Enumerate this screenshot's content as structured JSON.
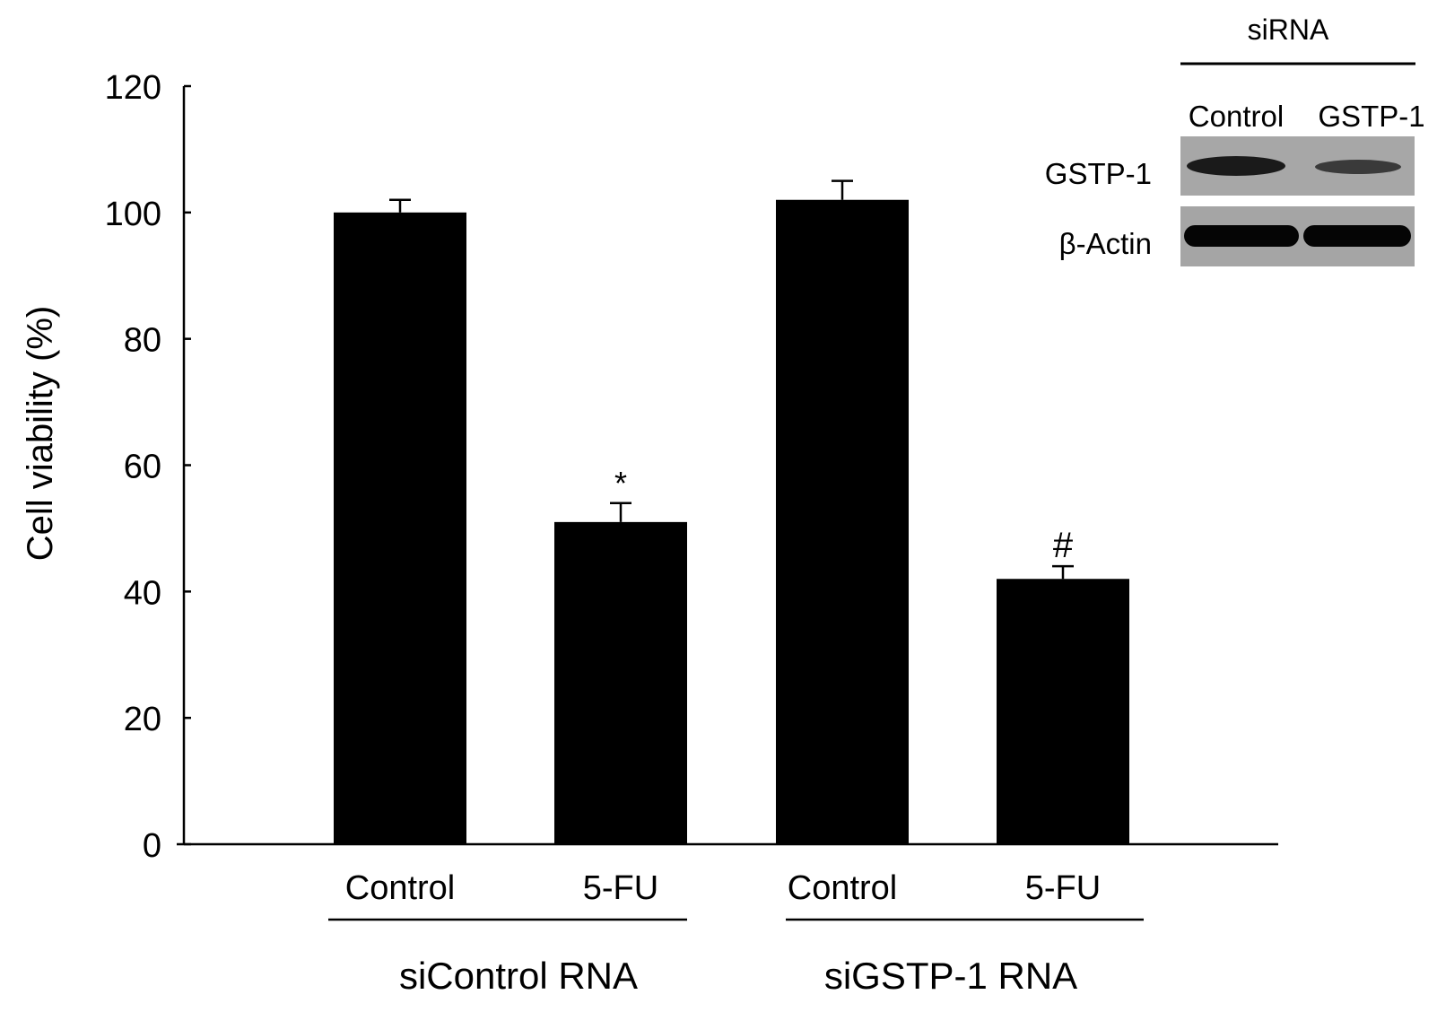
{
  "chart_data": {
    "type": "bar",
    "ylabel": "Cell viability (%)",
    "ylim": [
      0,
      120
    ],
    "yticks": [
      0,
      20,
      40,
      60,
      80,
      100,
      120
    ],
    "categories": [
      "Control",
      "5-FU",
      "Control",
      "5-FU"
    ],
    "values": [
      100,
      51,
      102,
      42
    ],
    "errors": [
      2,
      3,
      3,
      2
    ],
    "annotations": [
      "",
      "*",
      "",
      "#"
    ],
    "groups": [
      {
        "label": "siControl RNA",
        "members": [
          0,
          1
        ]
      },
      {
        "label": "siGSTP-1 RNA",
        "members": [
          2,
          3
        ]
      }
    ],
    "bar_color": "#000000",
    "grid": false
  },
  "inset": {
    "header": "siRNA",
    "columns": [
      "Control",
      "GSTP-1"
    ],
    "rows": [
      {
        "label": "GSTP-1",
        "band_intensity": [
          0.85,
          0.45
        ]
      },
      {
        "label": "β-Actin",
        "band_intensity": [
          1.0,
          1.0
        ]
      }
    ],
    "blot_background": "#a9a9a9"
  }
}
